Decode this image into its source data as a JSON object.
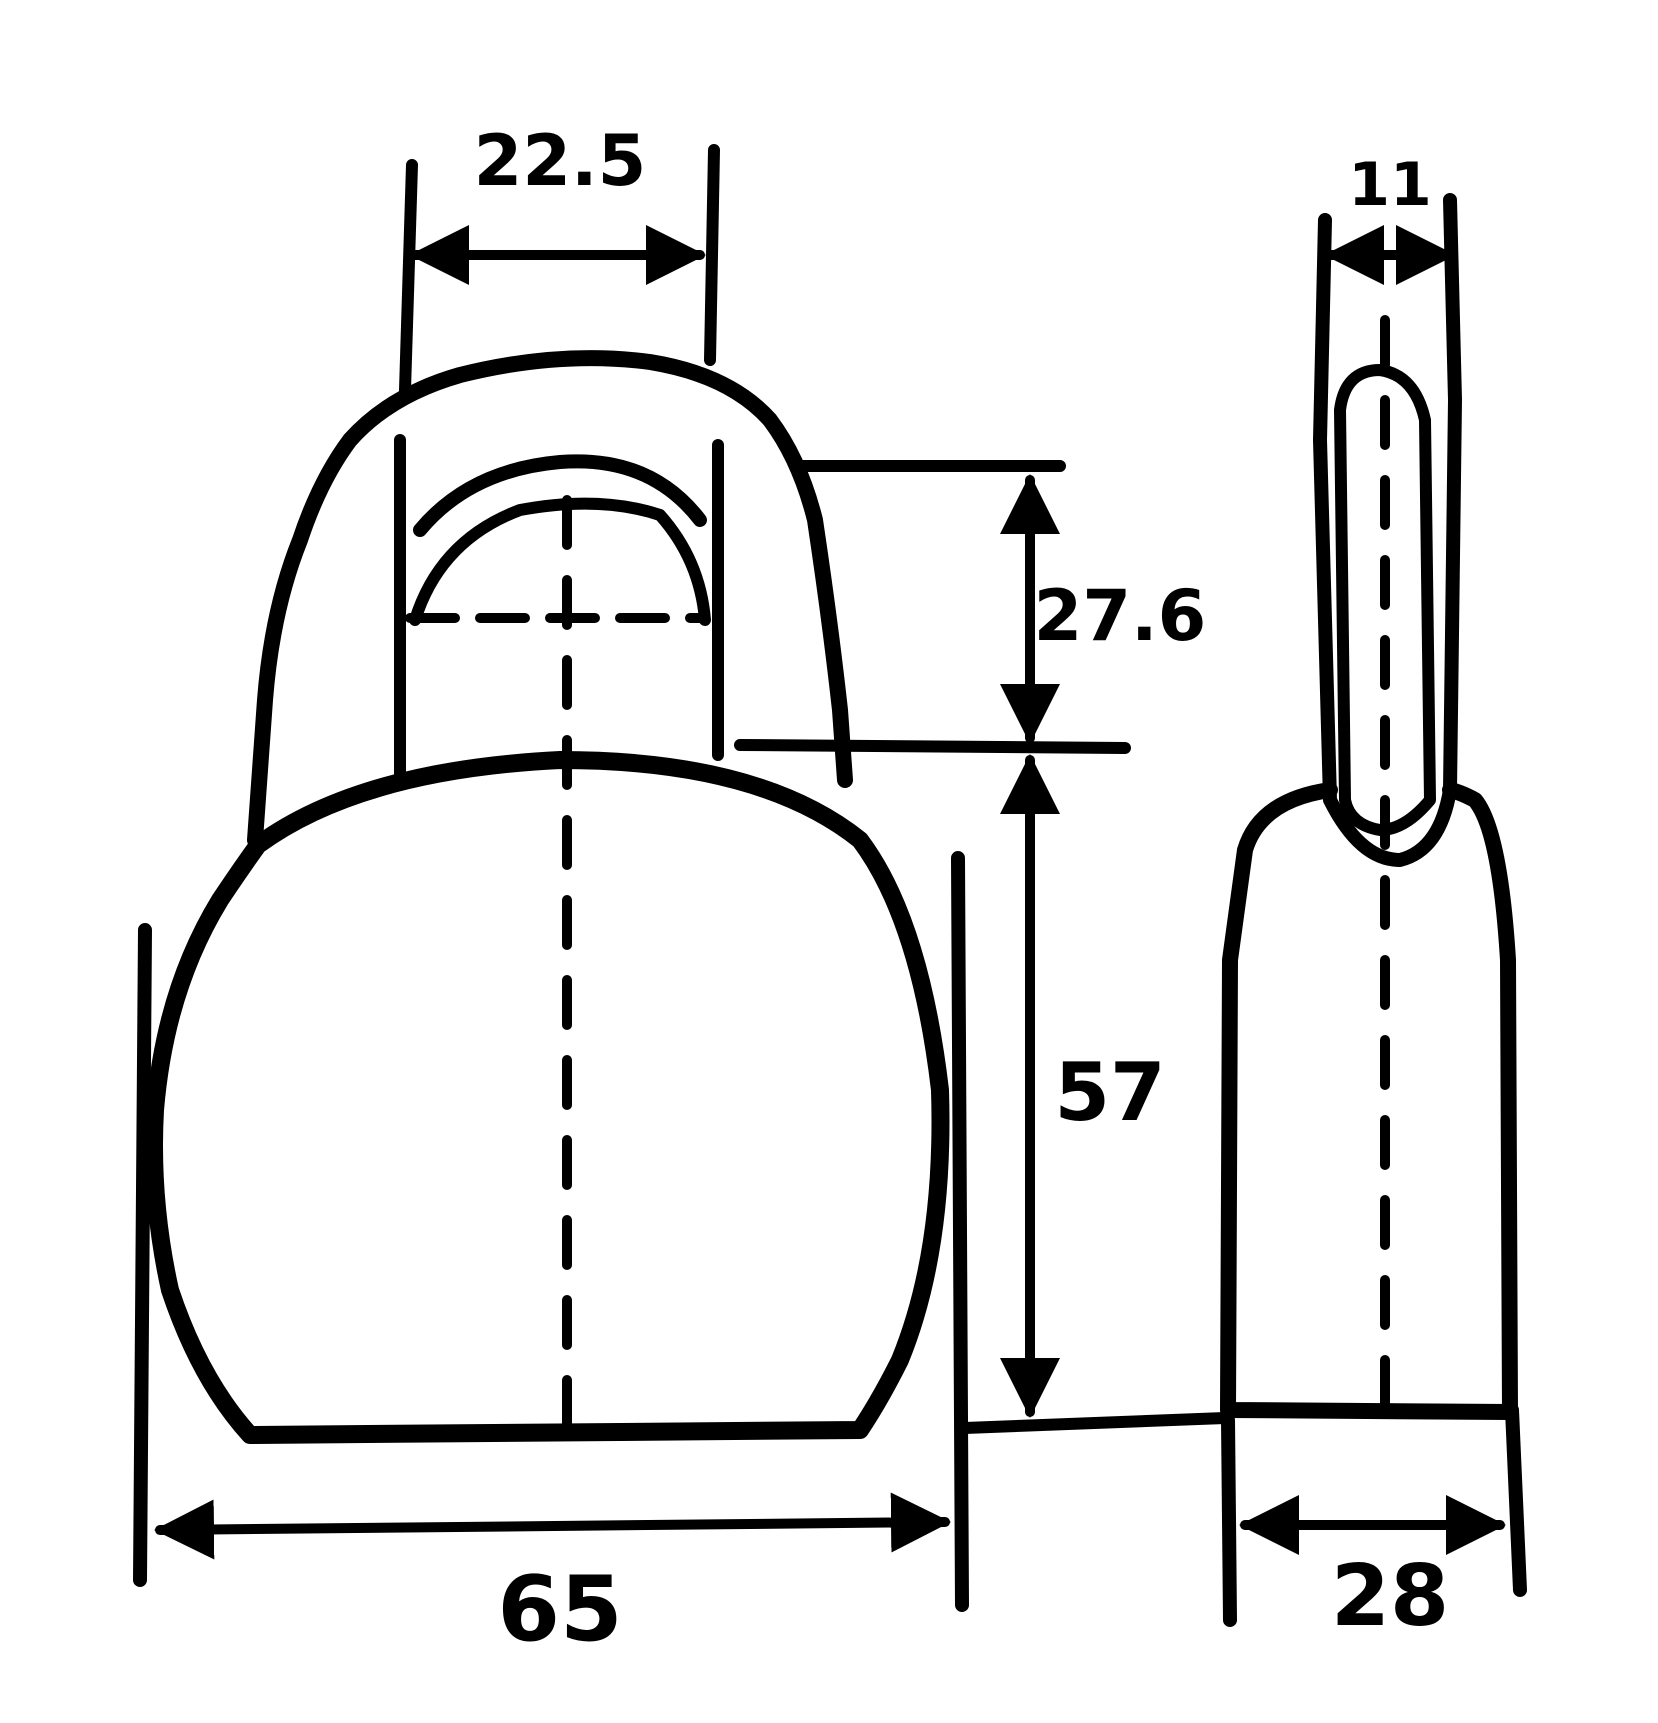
{
  "drawing": {
    "stroke_color": "#000000",
    "background_color": "#ffffff"
  },
  "dimensions": {
    "top_width": "22.5",
    "upper_height": "27.6",
    "lower_height": "57",
    "base_width": "65",
    "side_top_width": "11",
    "side_base_width": "28"
  }
}
